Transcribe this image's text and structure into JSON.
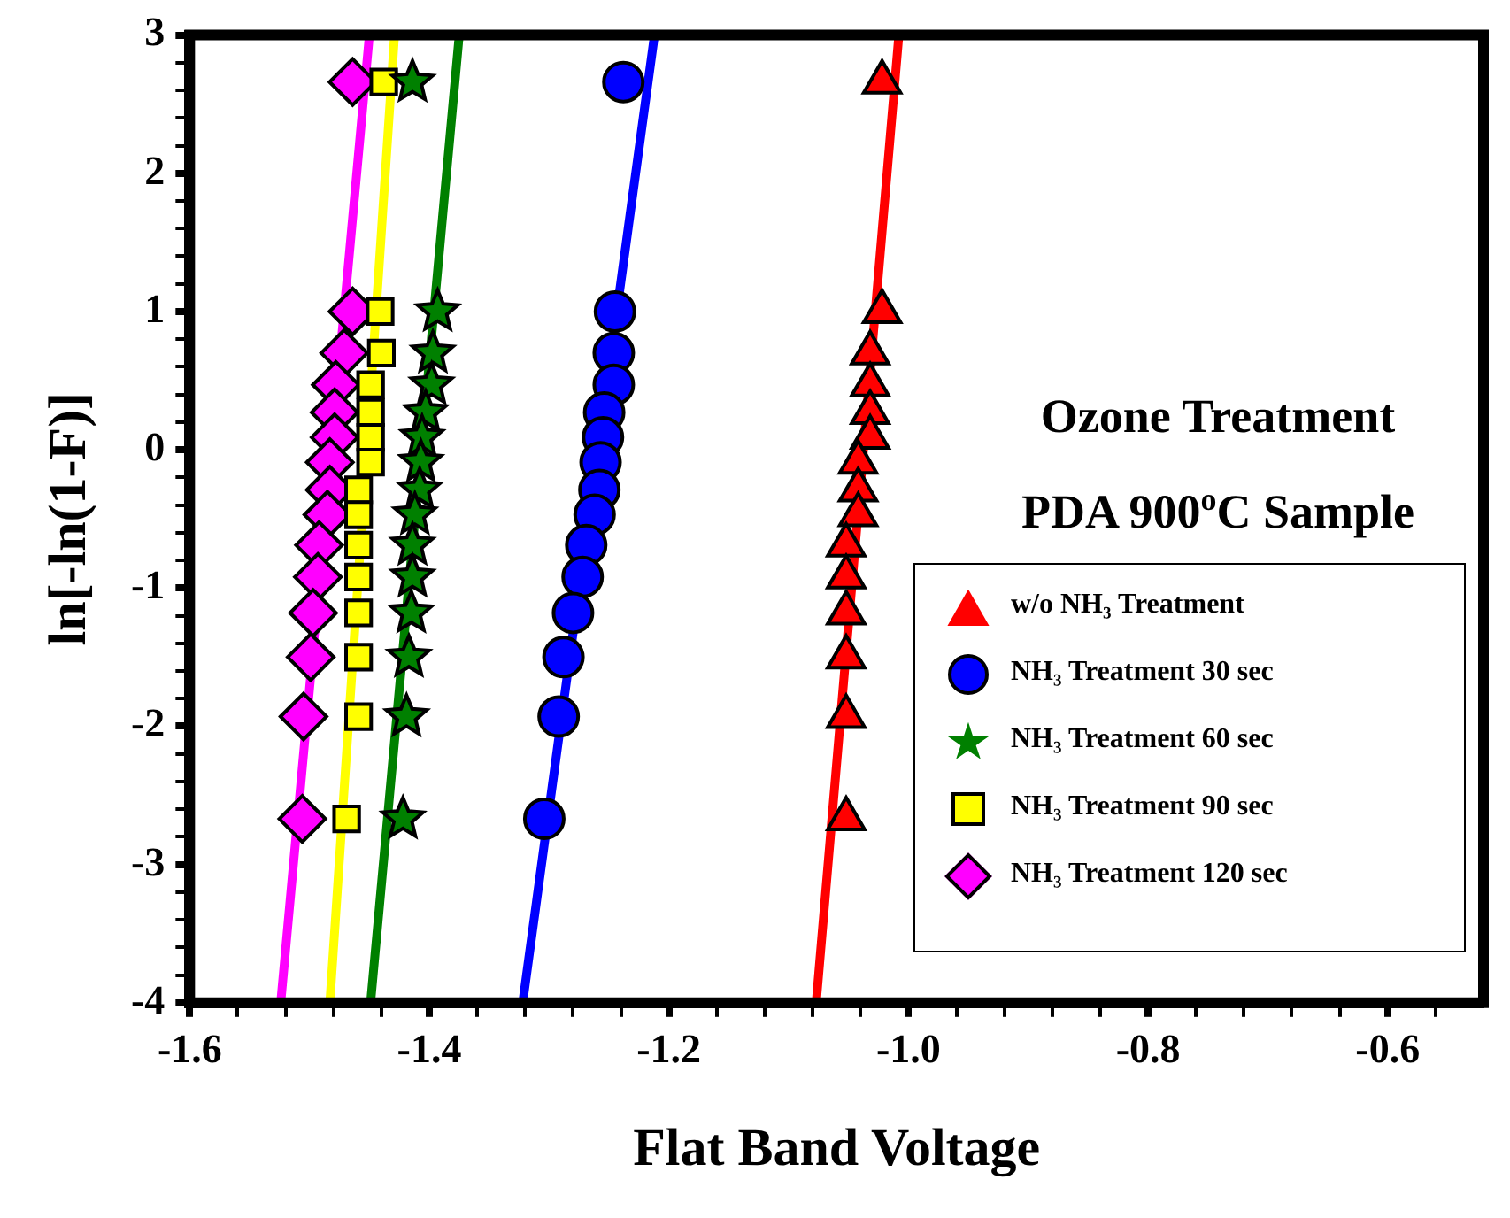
{
  "chart_data": {
    "type": "scatter",
    "xlabel": "Flat Band Voltage",
    "ylabel": "ln[-ln(1-F)]",
    "xlim": [
      -1.6,
      -0.52
    ],
    "ylim": [
      -4,
      3
    ],
    "xticks": [
      -1.6,
      {
        "value": -1.56,
        "label": null
      },
      {
        "value": -1.52,
        "label": null
      },
      {
        "value": -1.48,
        "label": null
      },
      {
        "value": -1.44,
        "label": null
      },
      -1.4,
      {
        "value": -1.36,
        "label": null
      },
      {
        "value": -1.32,
        "label": null
      },
      {
        "value": -1.28,
        "label": null
      },
      {
        "value": -1.24,
        "label": null
      },
      -1.2,
      {
        "value": -1.16,
        "label": null
      },
      {
        "value": -1.12,
        "label": null
      },
      {
        "value": -1.08,
        "label": null
      },
      {
        "value": -1.04,
        "label": null
      },
      {
        "value": -1,
        "label": "-1.0"
      },
      {
        "value": -0.96,
        "label": null
      },
      {
        "value": -0.92,
        "label": null
      },
      {
        "value": -0.88,
        "label": null
      },
      {
        "value": -0.84,
        "label": null
      },
      -0.8,
      {
        "value": -0.76,
        "label": null
      },
      {
        "value": -0.72,
        "label": null
      },
      {
        "value": -0.68,
        "label": null
      },
      {
        "value": -0.64,
        "label": null
      },
      -0.6,
      {
        "value": -0.56,
        "label": null
      }
    ],
    "yticks": [
      -4,
      {
        "value": -3.8,
        "label": null
      },
      {
        "value": -3.6,
        "label": null
      },
      {
        "value": -3.4,
        "label": null
      },
      {
        "value": -3.2,
        "label": null
      },
      -3,
      {
        "value": -2.8,
        "label": null
      },
      {
        "value": -2.6,
        "label": null
      },
      {
        "value": -2.4,
        "label": null
      },
      {
        "value": -2.2,
        "label": null
      },
      -2,
      {
        "value": -1.8,
        "label": null
      },
      {
        "value": -1.6,
        "label": null
      },
      {
        "value": -1.4,
        "label": null
      },
      {
        "value": -1.2,
        "label": null
      },
      -1,
      {
        "value": -0.8,
        "label": null
      },
      {
        "value": -0.6,
        "label": null
      },
      {
        "value": -0.4,
        "label": null
      },
      {
        "value": -0.2,
        "label": null
      },
      0,
      {
        "value": 0.2,
        "label": null
      },
      {
        "value": 0.4,
        "label": null
      },
      {
        "value": 0.6,
        "label": null
      },
      {
        "value": 0.8,
        "label": null
      },
      1,
      {
        "value": 1.2,
        "label": null
      },
      {
        "value": 1.4,
        "label": null
      },
      {
        "value": 1.6,
        "label": null
      },
      {
        "value": 1.8,
        "label": null
      },
      2,
      {
        "value": 2.2,
        "label": null
      },
      {
        "value": 2.4,
        "label": null
      },
      {
        "value": 2.6,
        "label": null
      },
      {
        "value": 2.8,
        "label": null
      },
      3
    ],
    "grid": false,
    "legend": "bottom right",
    "annotations": [
      "Ozone Treatment",
      "PDA 900$^{o}$C Sample"
    ],
    "series": [
      {
        "name": "w/o NH₃ Treatment",
        "color": "#ff0000",
        "marker": "triangle",
        "x": [
          -1.022,
          -1.022,
          -1.032,
          -1.032,
          -1.032,
          -1.032,
          -1.042,
          -1.042,
          -1.042,
          -1.052,
          -1.052,
          -1.052,
          -1.052,
          -1.052,
          -1.052
        ],
        "values": [
          2.66,
          1.0,
          0.7,
          0.47,
          0.27,
          0.09,
          -0.09,
          -0.29,
          -0.47,
          -0.69,
          -0.92,
          -1.18,
          -1.5,
          -1.93,
          -2.67
        ]
      },
      {
        "name": "NH₃ Treatment 30 sec",
        "color": "#0000ff",
        "marker": "circle",
        "x": [
          -1.238,
          -1.245,
          -1.246,
          -1.246,
          -1.254,
          -1.255,
          -1.257,
          -1.258,
          -1.262,
          -1.269,
          -1.272,
          -1.28,
          -1.288,
          -1.292,
          -1.304
        ],
        "values": [
          2.66,
          1.0,
          0.7,
          0.47,
          0.27,
          0.09,
          -0.09,
          -0.29,
          -0.47,
          -0.69,
          -0.92,
          -1.18,
          -1.5,
          -1.93,
          -2.67
        ]
      },
      {
        "name": "NH₃ Treatment 60 sec",
        "color": "#008000",
        "marker": "star",
        "x": [
          -1.414,
          -1.393,
          -1.397,
          -1.398,
          -1.403,
          -1.406,
          -1.407,
          -1.408,
          -1.412,
          -1.414,
          -1.414,
          -1.415,
          -1.417,
          -1.419,
          -1.422
        ],
        "values": [
          2.66,
          1.0,
          0.7,
          0.47,
          0.27,
          0.09,
          -0.09,
          -0.29,
          -0.47,
          -0.69,
          -0.92,
          -1.18,
          -1.5,
          -1.93,
          -2.67
        ]
      },
      {
        "name": "NH₃ Treatment 90 sec",
        "color": "#ffff00",
        "marker": "square",
        "x": [
          -1.438,
          -1.441,
          -1.44,
          -1.449,
          -1.449,
          -1.449,
          -1.449,
          -1.459,
          -1.459,
          -1.459,
          -1.459,
          -1.459,
          -1.459,
          -1.459,
          -1.469
        ],
        "values": [
          2.66,
          1.0,
          0.7,
          0.47,
          0.27,
          0.09,
          -0.09,
          -0.29,
          -0.47,
          -0.69,
          -0.92,
          -1.18,
          -1.5,
          -1.93,
          -2.67
        ]
      },
      {
        "name": "NH₃ Treatment 120 sec",
        "color": "#ff00ff",
        "marker": "diamond",
        "x": [
          -1.464,
          -1.464,
          -1.471,
          -1.478,
          -1.479,
          -1.479,
          -1.483,
          -1.483,
          -1.485,
          -1.492,
          -1.493,
          -1.497,
          -1.499,
          -1.505,
          -1.506
        ],
        "values": [
          2.66,
          1.0,
          0.7,
          0.47,
          0.27,
          0.09,
          -0.09,
          -0.29,
          -0.47,
          -0.69,
          -0.92,
          -1.18,
          -1.5,
          -1.93,
          -2.67
        ]
      },
      {
        "type": "line",
        "color": "#ff0000",
        "marker": "none",
        "x": [
          -1.077,
          -1.008
        ],
        "values": [
          -4,
          3
        ]
      },
      {
        "type": "line",
        "color": "#0000ff",
        "marker": "none",
        "x": [
          -1.322,
          -1.212
        ],
        "values": [
          -4,
          3
        ]
      },
      {
        "type": "line",
        "color": "#008000",
        "marker": "none",
        "x": [
          -1.449,
          -1.375
        ],
        "values": [
          -4,
          3
        ]
      },
      {
        "type": "line",
        "color": "#ffff00",
        "marker": "none",
        "x": [
          -1.483,
          -1.429
        ],
        "values": [
          -4,
          3
        ]
      },
      {
        "type": "line",
        "color": "#ff00ff",
        "marker": "none",
        "x": [
          -1.524,
          -1.45
        ],
        "values": [
          -4,
          3
        ]
      }
    ]
  }
}
